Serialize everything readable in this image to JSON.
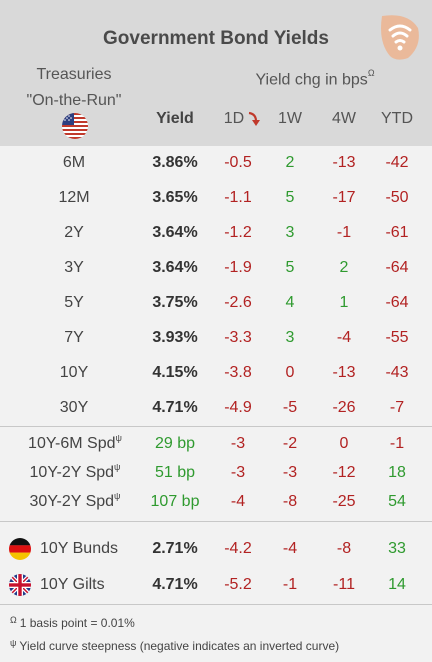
{
  "title": "Government Bond Yields",
  "header": {
    "treasuries_line1": "Treasuries",
    "treasuries_line2": "\"On-the-Run\"",
    "yield_chg_label": "Yield chg in bps",
    "yield_chg_symbol": "Ω",
    "col_yield": "Yield",
    "col_1d": "1D",
    "col_1w": "1W",
    "col_4w": "4W",
    "col_ytd": "YTD"
  },
  "colors": {
    "negative": "#b22222",
    "positive": "#2f9a2f",
    "header_bg": "#d9d9d9",
    "body_bg": "#f2f2f2"
  },
  "treasuries": [
    {
      "label": "6M",
      "yield": "3.86%",
      "d1": "-0.5",
      "w1": "2",
      "w4": "-13",
      "ytd": "-42"
    },
    {
      "label": "12M",
      "yield": "3.65%",
      "d1": "-1.1",
      "w1": "5",
      "w4": "-17",
      "ytd": "-50"
    },
    {
      "label": "2Y",
      "yield": "3.64%",
      "d1": "-1.2",
      "w1": "3",
      "w4": "-1",
      "ytd": "-61"
    },
    {
      "label": "3Y",
      "yield": "3.64%",
      "d1": "-1.9",
      "w1": "5",
      "w4": "2",
      "ytd": "-64"
    },
    {
      "label": "5Y",
      "yield": "3.75%",
      "d1": "-2.6",
      "w1": "4",
      "w4": "1",
      "ytd": "-64"
    },
    {
      "label": "7Y",
      "yield": "3.93%",
      "d1": "-3.3",
      "w1": "3",
      "w4": "-4",
      "ytd": "-55"
    },
    {
      "label": "10Y",
      "yield": "4.15%",
      "d1": "-3.8",
      "w1": "0",
      "w4": "-13",
      "ytd": "-43"
    },
    {
      "label": "30Y",
      "yield": "4.71%",
      "d1": "-4.9",
      "w1": "-5",
      "w4": "-26",
      "ytd": "-7"
    }
  ],
  "spreads_symbol": "ψ",
  "spreads": [
    {
      "label": "10Y-6M Spd",
      "yield": "29 bp",
      "d1": "-3",
      "w1": "-2",
      "w4": "0",
      "ytd": "-1"
    },
    {
      "label": "10Y-2Y Spd",
      "yield": "51 bp",
      "d1": "-3",
      "w1": "-3",
      "w4": "-12",
      "ytd": "18"
    },
    {
      "label": "30Y-2Y Spd",
      "yield": "107 bp",
      "d1": "-4",
      "w1": "-8",
      "w4": "-25",
      "ytd": "54"
    }
  ],
  "international": [
    {
      "label": "10Y Bunds",
      "flag": "germany-flag-icon",
      "yield": "2.71%",
      "d1": "-4.2",
      "w1": "-4",
      "w4": "-8",
      "ytd": "33"
    },
    {
      "label": "10Y Gilts",
      "flag": "uk-flag-icon",
      "yield": "4.71%",
      "d1": "-5.2",
      "w1": "-1",
      "w4": "-11",
      "ytd": "14"
    }
  ],
  "footnotes": [
    {
      "symbol": "Ω",
      "text": "1 basis point = 0.01%"
    },
    {
      "symbol": "ψ",
      "text": "Yield curve steepness (negative indicates an inverted curve)"
    }
  ]
}
